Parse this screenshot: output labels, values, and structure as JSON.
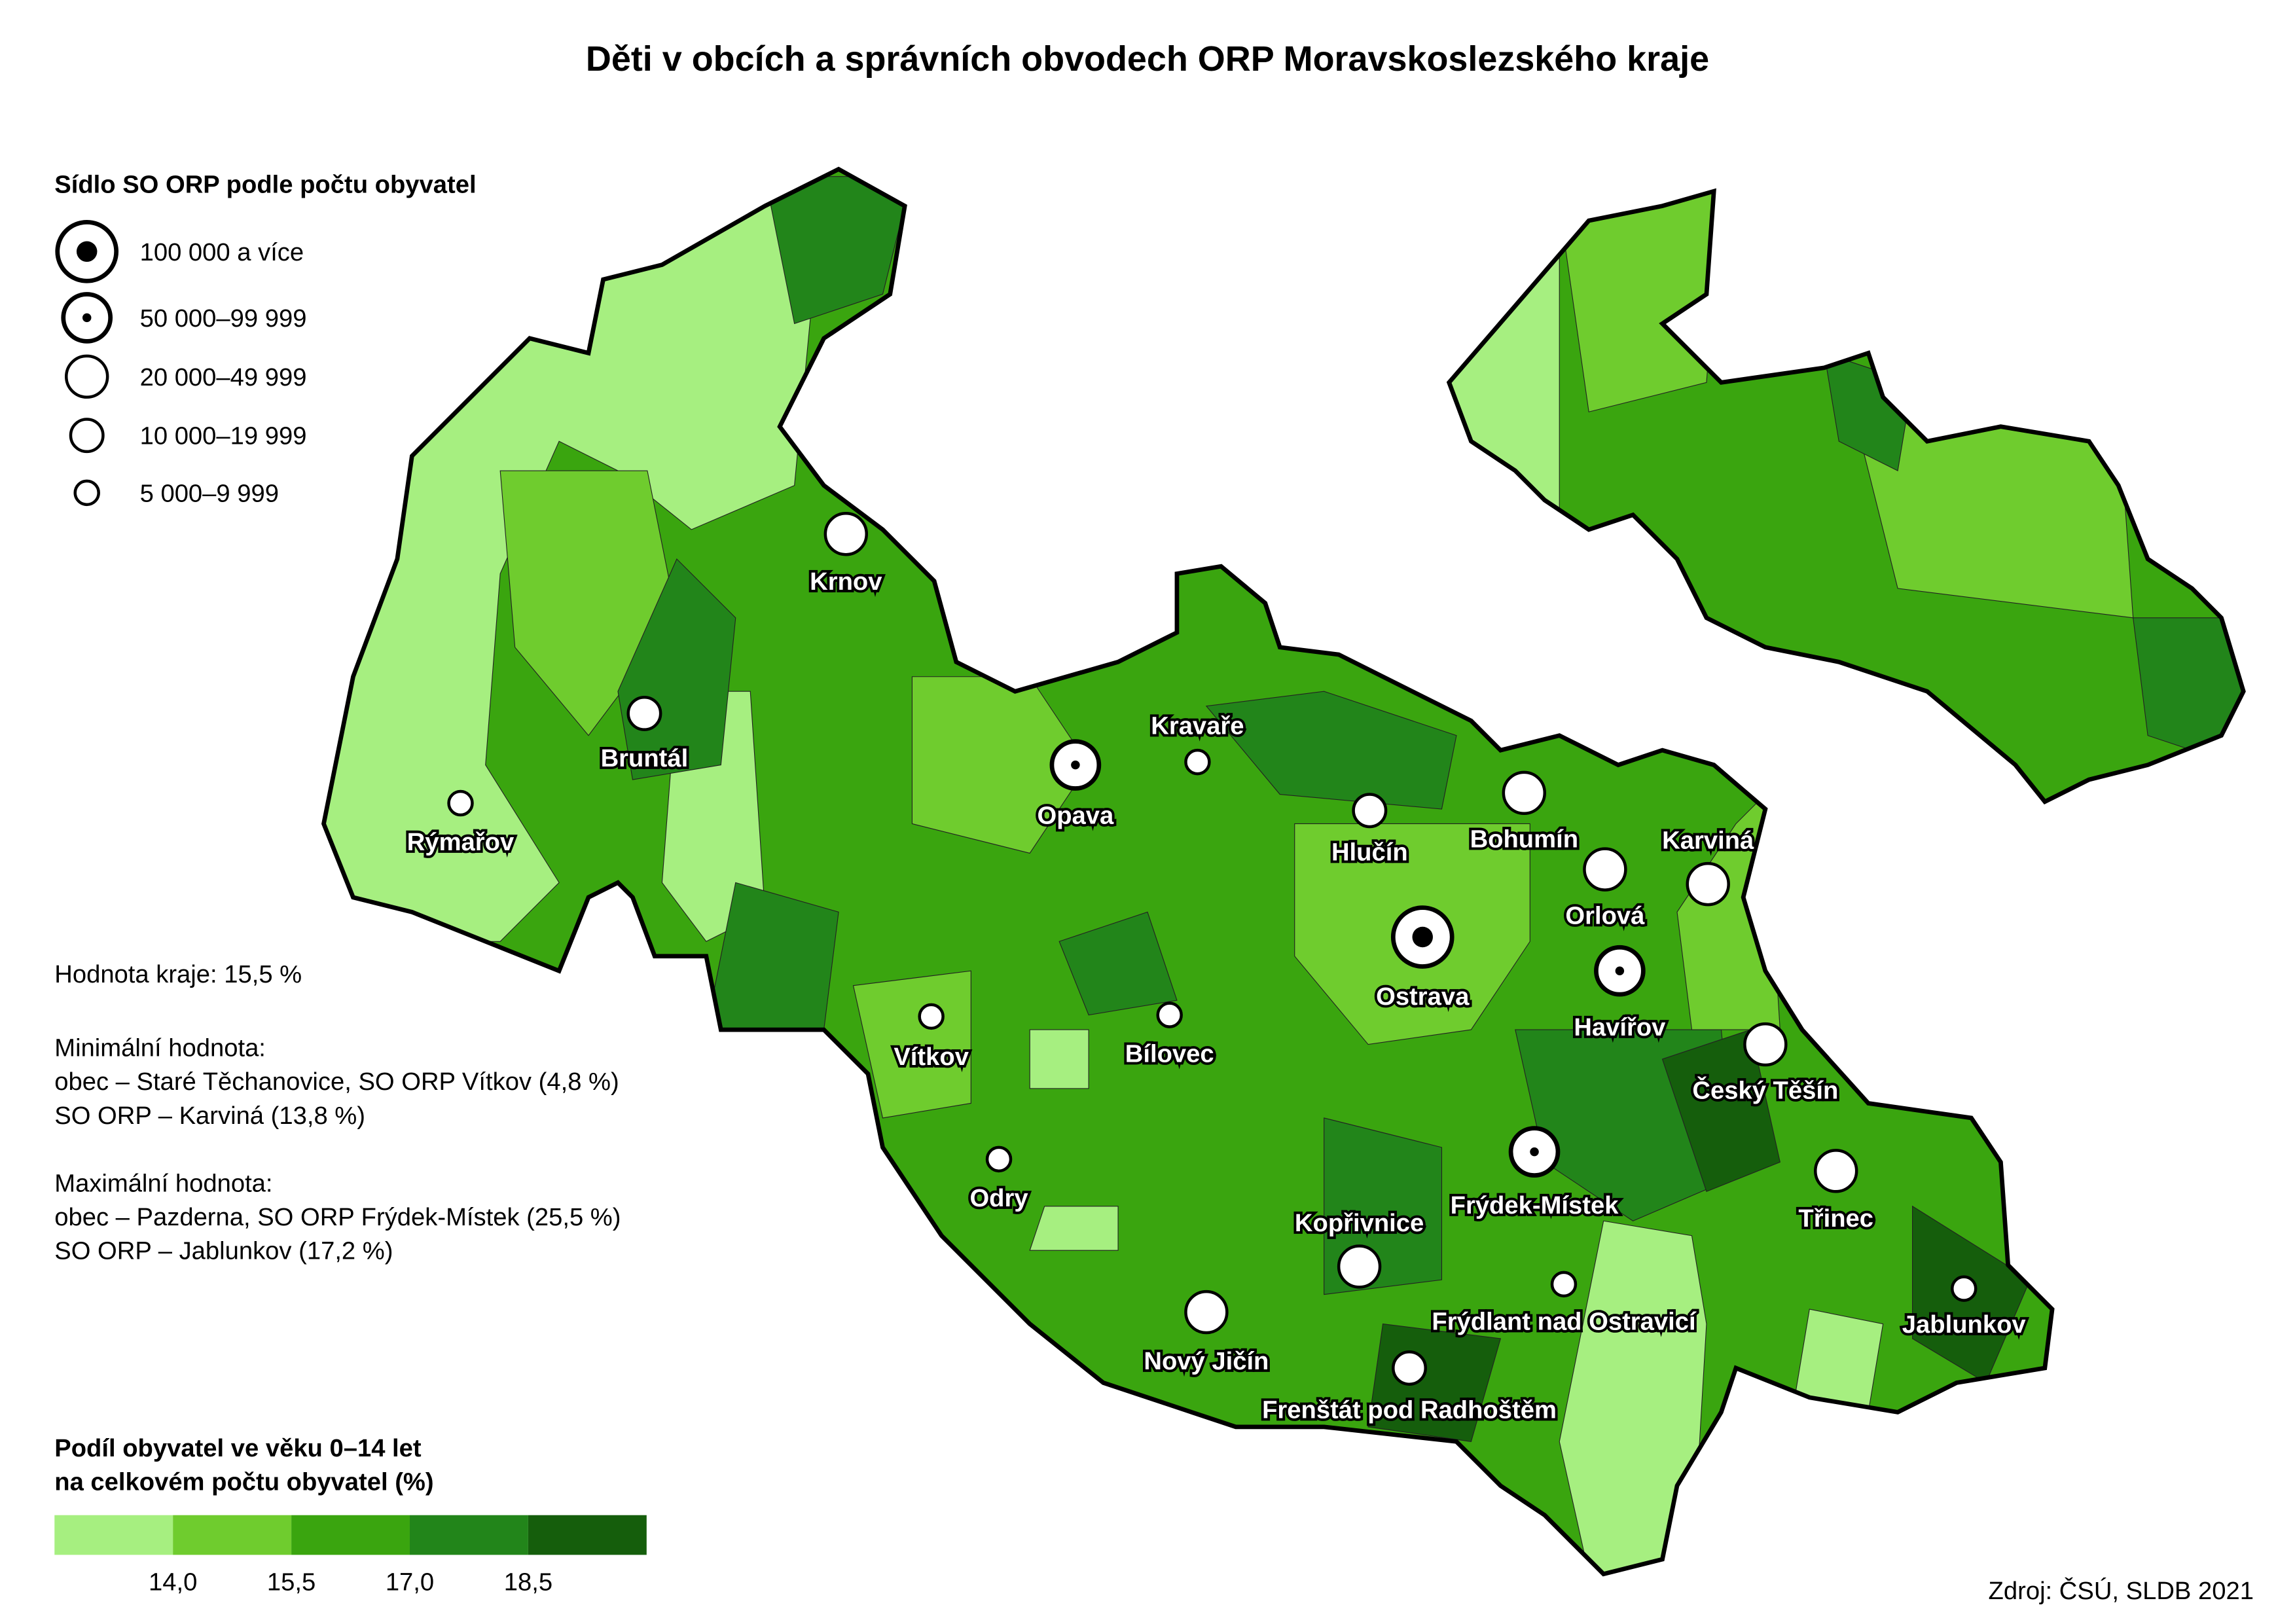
{
  "title": "Děti v obcích a správních obvodech ORP Moravskoslezského kraje",
  "symbol_legend": {
    "title": "Sídlo SO ORP podle počtu obyvatel",
    "items": [
      "100 000 a více",
      "50 000–99 999",
      "20 000–49 999",
      "10 000–19 999",
      "5 000–9 999"
    ]
  },
  "cities": [
    "Krnov",
    "Bruntál",
    "Rýmařov",
    "Opava",
    "Kravaře",
    "Hlučín",
    "Bohumín",
    "Karviná",
    "Orlová",
    "Ostrava",
    "Havířov",
    "Český Těšín",
    "Třinec",
    "Jablunkov",
    "Frýdek-Místek",
    "Frýdlant nad Ostravicí",
    "Kopřivnice",
    "Nový Jičín",
    "Frenštát pod Radhoštěm",
    "Bílovec",
    "Vítkov",
    "Odry"
  ],
  "notes": [
    "Hodnota kraje: 15,5 %",
    "Minimální hodnota:",
    "obec – Staré Těchanovice, SO ORP Vítkov (4,8 %)",
    "SO ORP – Karviná (13,8 %)",
    "Maximální hodnota:",
    "obec – Pazderna, SO ORP Frýdek-Místek (25,5 %)",
    "SO ORP – Jablunkov (17,2 %)"
  ],
  "color_legend": {
    "title": [
      "Podíl obyvatel ve věku 0–14 let",
      "na celkovém počtu obyvatel (%)"
    ],
    "colors": [
      "#a6ef80",
      "#6fcc2e",
      "#3aa50f",
      "#22851a",
      "#155e0c"
    ],
    "breaks": [
      {
        "value": 14,
        "label": "14,0"
      },
      {
        "value": 15.5,
        "label": "15,5"
      },
      {
        "value": 17,
        "label": "17,0"
      },
      {
        "value": 18.5,
        "label": "18,5"
      }
    ]
  },
  "source": "Zdroj: ČSÚ, SLDB 2021"
}
